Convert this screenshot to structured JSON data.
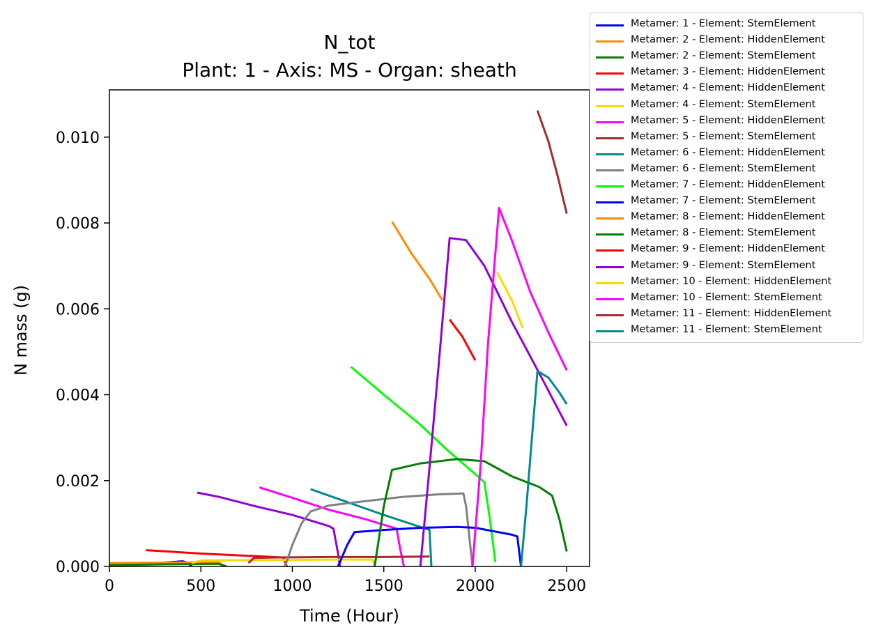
{
  "chart_data": {
    "type": "line",
    "title": "N_tot",
    "subtitle": "Plant: 1 - Axis: MS - Organ: sheath",
    "xlabel": "Time (Hour)",
    "ylabel": "N mass (g)",
    "xlim": [
      0,
      2625
    ],
    "ylim": [
      0,
      0.0111
    ],
    "x_ticks": [
      "0",
      "500",
      "1000",
      "1500",
      "2000",
      "2500"
    ],
    "y_ticks": [
      "0.000",
      "0.002",
      "0.004",
      "0.006",
      "0.008",
      "0.010"
    ],
    "x_tick_values": [
      0,
      500,
      1000,
      1500,
      2000,
      2500
    ],
    "y_tick_values": [
      0,
      0.002,
      0.004,
      0.006,
      0.008,
      0.01
    ],
    "grid": false,
    "legend_position": "outside-right",
    "series": [
      {
        "name": "Metamer: 1 - Element: StemElement",
        "color": "#0000ff",
        "points": [
          [
            0,
            4e-05
          ],
          [
            200,
            6e-05
          ],
          [
            400,
            0.00012
          ],
          [
            430,
            8e-05
          ],
          [
            450,
            0
          ]
        ]
      },
      {
        "name": "Metamer: 2 - Element: HiddenElement",
        "color": "#ff8c00",
        "points": [
          [
            0,
            8e-05
          ],
          [
            300,
            9e-05
          ],
          [
            600,
            0.0001
          ],
          [
            610,
            5e-05
          ],
          [
            640,
            0
          ]
        ]
      },
      {
        "name": "Metamer: 2 - Element: StemElement",
        "color": "#008000",
        "points": [
          [
            0,
            3e-05
          ],
          [
            300,
            5e-05
          ],
          [
            600,
            6e-05
          ],
          [
            640,
            0
          ]
        ]
      },
      {
        "name": "Metamer: 3 - Element: HiddenElement",
        "color": "#ff0000",
        "points": [
          [
            200,
            0.00038
          ],
          [
            500,
            0.0003
          ],
          [
            800,
            0.00024
          ],
          [
            950,
            0.00021
          ],
          [
            970,
            0
          ]
        ]
      },
      {
        "name": "Metamer: 4 - Element: HiddenElement",
        "color": "#9400d3",
        "points": [
          [
            480,
            0.00172
          ],
          [
            600,
            0.00162
          ],
          [
            800,
            0.0014
          ],
          [
            1000,
            0.0012
          ],
          [
            1200,
            0.00094
          ],
          [
            1225,
            0.00088
          ],
          [
            1250,
            0.0003
          ],
          [
            1260,
            0
          ]
        ]
      },
      {
        "name": "Metamer: 4 - Element: StemElement",
        "color": "#ffd700",
        "points": [
          [
            450,
            8e-05
          ],
          [
            500,
            0.00014
          ],
          [
            900,
            0.00015
          ],
          [
            1200,
            0.00016
          ],
          [
            1440,
            0.00016
          ],
          [
            1450,
            0
          ]
        ]
      },
      {
        "name": "Metamer: 5 - Element: HiddenElement",
        "color": "#ff00ff",
        "points": [
          [
            820,
            0.00184
          ],
          [
            1000,
            0.0016
          ],
          [
            1200,
            0.00132
          ],
          [
            1400,
            0.0011
          ],
          [
            1570,
            0.00088
          ],
          [
            1590,
            0.0004
          ],
          [
            1610,
            0
          ]
        ]
      },
      {
        "name": "Metamer: 5 - Element: StemElement",
        "color": "#a52a2a",
        "points": [
          [
            760,
            8e-05
          ],
          [
            790,
            0.0002
          ],
          [
            900,
            0.00021
          ],
          [
            1200,
            0.00022
          ],
          [
            1500,
            0.00022
          ],
          [
            1750,
            0.00023
          ]
        ]
      },
      {
        "name": "Metamer: 6 - Element: HiddenElement",
        "color": "#008b8b",
        "points": [
          [
            1100,
            0.0018
          ],
          [
            1300,
            0.0015
          ],
          [
            1500,
            0.0012
          ],
          [
            1700,
            0.00092
          ],
          [
            1750,
            0.00085
          ],
          [
            1760,
            0
          ]
        ]
      },
      {
        "name": "Metamer: 6 - Element: StemElement",
        "color": "#808080",
        "points": [
          [
            960,
            0
          ],
          [
            1000,
            0.0005
          ],
          [
            1050,
            0.001
          ],
          [
            1100,
            0.00128
          ],
          [
            1200,
            0.00142
          ],
          [
            1400,
            0.00152
          ],
          [
            1600,
            0.00162
          ],
          [
            1800,
            0.00168
          ],
          [
            1935,
            0.0017
          ],
          [
            1950,
            0.0014
          ],
          [
            1985,
            0
          ]
        ]
      },
      {
        "name": "Metamer: 7 - Element: HiddenElement",
        "color": "#00ff00",
        "points": [
          [
            1320,
            0.00465
          ],
          [
            1500,
            0.004
          ],
          [
            1700,
            0.0033
          ],
          [
            1850,
            0.0027
          ],
          [
            2000,
            0.00215
          ],
          [
            2050,
            0.00196
          ],
          [
            2080,
            0.0011
          ],
          [
            2110,
            0.0001
          ]
        ]
      },
      {
        "name": "Metamer: 7 - Element: StemElement",
        "color": "#0000ff",
        "points": [
          [
            1250,
            0
          ],
          [
            1300,
            0.0005
          ],
          [
            1340,
            0.0008
          ],
          [
            1500,
            0.00085
          ],
          [
            1700,
            0.0009
          ],
          [
            1900,
            0.00092
          ],
          [
            2000,
            0.0009
          ],
          [
            2200,
            0.00074
          ],
          [
            2230,
            0.0007
          ],
          [
            2250,
            0
          ]
        ]
      },
      {
        "name": "Metamer: 8 - Element: HiddenElement",
        "color": "#ff8c00",
        "points": [
          [
            1545,
            0.00803
          ],
          [
            1650,
            0.0073
          ],
          [
            1750,
            0.0067
          ],
          [
            1820,
            0.0062
          ]
        ]
      },
      {
        "name": "Metamer: 8 - Element: StemElement",
        "color": "#008000",
        "points": [
          [
            1450,
            0
          ],
          [
            1500,
            0.0014
          ],
          [
            1545,
            0.00225
          ],
          [
            1700,
            0.0024
          ],
          [
            1900,
            0.0025
          ],
          [
            2050,
            0.00245
          ],
          [
            2200,
            0.0021
          ],
          [
            2350,
            0.00185
          ],
          [
            2420,
            0.00165
          ],
          [
            2460,
            0.0011
          ],
          [
            2500,
            0.00035
          ]
        ]
      },
      {
        "name": "Metamer: 9 - Element: HiddenElement",
        "color": "#ff0000",
        "points": [
          [
            1860,
            0.00575
          ],
          [
            1930,
            0.00535
          ],
          [
            2000,
            0.0048
          ]
        ]
      },
      {
        "name": "Metamer: 9 - Element: StemElement",
        "color": "#9400d3",
        "points": [
          [
            1700,
            0
          ],
          [
            1750,
            0.0023
          ],
          [
            1800,
            0.0047
          ],
          [
            1860,
            0.00765
          ],
          [
            1950,
            0.0076
          ],
          [
            2050,
            0.007
          ],
          [
            2200,
            0.0057
          ],
          [
            2350,
            0.0045
          ],
          [
            2500,
            0.00328
          ]
        ]
      },
      {
        "name": "Metamer: 10 - Element: HiddenElement",
        "color": "#ffd700",
        "points": [
          [
            2120,
            0.00685
          ],
          [
            2200,
            0.0062
          ],
          [
            2260,
            0.00555
          ]
        ]
      },
      {
        "name": "Metamer: 10 - Element: StemElement",
        "color": "#ff00ff",
        "points": [
          [
            1985,
            0
          ],
          [
            2030,
            0.0024
          ],
          [
            2070,
            0.0052
          ],
          [
            2110,
            0.0073
          ],
          [
            2130,
            0.00835
          ],
          [
            2200,
            0.0076
          ],
          [
            2300,
            0.0064
          ],
          [
            2400,
            0.00545
          ],
          [
            2500,
            0.00457
          ]
        ]
      },
      {
        "name": "Metamer: 11 - Element: HiddenElement",
        "color": "#a52a2a",
        "points": [
          [
            2340,
            0.01062
          ],
          [
            2400,
            0.0099
          ],
          [
            2450,
            0.0091
          ],
          [
            2500,
            0.00822
          ]
        ]
      },
      {
        "name": "Metamer: 11 - Element: StemElement",
        "color": "#008b8b",
        "points": [
          [
            2250,
            0
          ],
          [
            2280,
            0.0014
          ],
          [
            2310,
            0.003
          ],
          [
            2340,
            0.00455
          ],
          [
            2400,
            0.0044
          ],
          [
            2460,
            0.00405
          ],
          [
            2500,
            0.00378
          ]
        ]
      }
    ]
  }
}
